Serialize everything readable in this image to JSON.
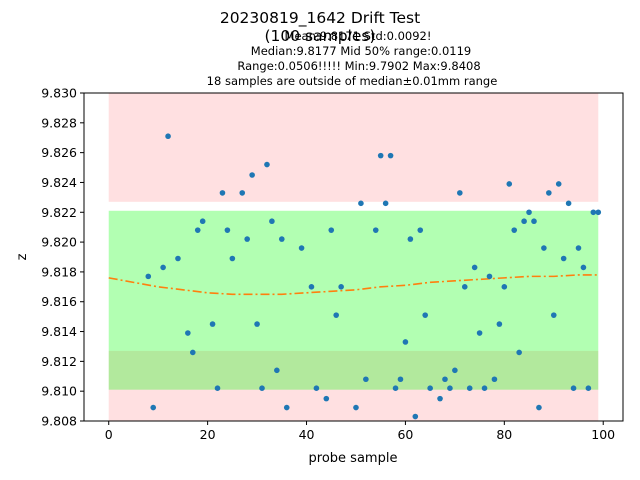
{
  "chart_data": {
    "type": "scatter",
    "title": "20230819_1642 Drift Test",
    "subtitle": "(100 samples)",
    "stats_lines": [
      "Mean:9.8171  Std:0.0092!",
      "Median:9.8177  Mid 50% range:0.0119",
      "Range:0.0506!!!!!  Min:9.7902  Max:9.8408",
      "18 samples are outside of median±0.01mm range"
    ],
    "xlabel": "probe sample",
    "ylabel": "z",
    "xlim": [
      -5,
      104
    ],
    "ylim": [
      9.808,
      9.83
    ],
    "x_ticks": [
      0,
      20,
      40,
      60,
      80,
      100
    ],
    "y_ticks": [
      9.808,
      9.81,
      9.812,
      9.814,
      9.816,
      9.818,
      9.82,
      9.822,
      9.824,
      9.826,
      9.828,
      9.83
    ],
    "grid": false,
    "bands": [
      {
        "name": "outside-range",
        "y0": 9.8227,
        "y1": 9.83,
        "x0": 0,
        "x1": 99,
        "color": "#ff8f94",
        "opacity": 0.28
      },
      {
        "name": "outside-range",
        "y0": 9.808,
        "y1": 9.8127,
        "x0": 0,
        "x1": 99,
        "color": "#ff8f94",
        "opacity": 0.28
      },
      {
        "name": "median-range",
        "y0": 9.8101,
        "y1": 9.8221,
        "x0": 0,
        "x1": 99,
        "color": "#00ff00",
        "opacity": 0.3
      }
    ],
    "series": [
      {
        "marker_color": "#1f77b4",
        "points": [
          [
            8,
            9.8177
          ],
          [
            9,
            9.8089
          ],
          [
            11,
            9.8183
          ],
          [
            12,
            9.8271
          ],
          [
            14,
            9.8189
          ],
          [
            16,
            9.8139
          ],
          [
            17,
            9.8126
          ],
          [
            18,
            9.8208
          ],
          [
            19,
            9.8214
          ],
          [
            21,
            9.8145
          ],
          [
            22,
            9.8102
          ],
          [
            23,
            9.8233
          ],
          [
            24,
            9.8208
          ],
          [
            25,
            9.8189
          ],
          [
            27,
            9.8233
          ],
          [
            28,
            9.8202
          ],
          [
            29,
            9.8245
          ],
          [
            30,
            9.8145
          ],
          [
            31,
            9.8102
          ],
          [
            32,
            9.8252
          ],
          [
            33,
            9.8214
          ],
          [
            34,
            9.8114
          ],
          [
            35,
            9.8202
          ],
          [
            36,
            9.8089
          ],
          [
            39,
            9.8196
          ],
          [
            41,
            9.817
          ],
          [
            42,
            9.8102
          ],
          [
            44,
            9.8095
          ],
          [
            45,
            9.8208
          ],
          [
            46,
            9.8151
          ],
          [
            47,
            9.817
          ],
          [
            50,
            9.8089
          ],
          [
            51,
            9.8226
          ],
          [
            52,
            9.8108
          ],
          [
            54,
            9.8208
          ],
          [
            55,
            9.8258
          ],
          [
            56,
            9.8226
          ],
          [
            57,
            9.8258
          ],
          [
            58,
            9.8102
          ],
          [
            59,
            9.8108
          ],
          [
            60,
            9.8133
          ],
          [
            61,
            9.8202
          ],
          [
            62,
            9.8083
          ],
          [
            63,
            9.8208
          ],
          [
            64,
            9.8151
          ],
          [
            65,
            9.8102
          ],
          [
            67,
            9.8095
          ],
          [
            68,
            9.8108
          ],
          [
            69,
            9.8102
          ],
          [
            70,
            9.8114
          ],
          [
            71,
            9.8233
          ],
          [
            72,
            9.817
          ],
          [
            73,
            9.8102
          ],
          [
            74,
            9.8183
          ],
          [
            75,
            9.8139
          ],
          [
            76,
            9.8102
          ],
          [
            77,
            9.8177
          ],
          [
            78,
            9.8108
          ],
          [
            79,
            9.8145
          ],
          [
            80,
            9.817
          ],
          [
            81,
            9.8239
          ],
          [
            82,
            9.8208
          ],
          [
            83,
            9.8126
          ],
          [
            84,
            9.8214
          ],
          [
            85,
            9.822
          ],
          [
            86,
            9.8214
          ],
          [
            87,
            9.8089
          ],
          [
            88,
            9.8196
          ],
          [
            89,
            9.8233
          ],
          [
            90,
            9.8151
          ],
          [
            91,
            9.8239
          ],
          [
            92,
            9.8189
          ],
          [
            93,
            9.8226
          ],
          [
            94,
            9.8102
          ],
          [
            95,
            9.8196
          ],
          [
            96,
            9.8183
          ],
          [
            97,
            9.8102
          ],
          [
            98,
            9.822
          ],
          [
            99,
            9.822
          ]
        ]
      },
      {
        "line_color": "#ff7f0e",
        "line_style": "dashdot",
        "points": [
          [
            0,
            9.8176
          ],
          [
            5,
            9.8173
          ],
          [
            10,
            9.817
          ],
          [
            15,
            9.8168
          ],
          [
            20,
            9.8166
          ],
          [
            25,
            9.8165
          ],
          [
            30,
            9.8165
          ],
          [
            35,
            9.8165
          ],
          [
            40,
            9.8166
          ],
          [
            45,
            9.8167
          ],
          [
            50,
            9.8168
          ],
          [
            55,
            9.817
          ],
          [
            60,
            9.8171
          ],
          [
            65,
            9.8173
          ],
          [
            70,
            9.8174
          ],
          [
            75,
            9.8175
          ],
          [
            80,
            9.8176
          ],
          [
            85,
            9.8177
          ],
          [
            90,
            9.8177
          ],
          [
            95,
            9.8178
          ],
          [
            99,
            9.8178
          ]
        ]
      }
    ]
  }
}
